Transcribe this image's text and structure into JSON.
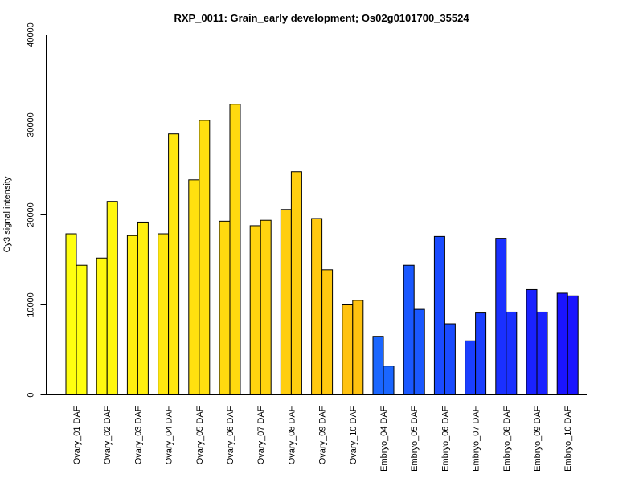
{
  "chart_data": {
    "type": "bar",
    "title": "RXP_0011: Grain_early development; Os02g0101700_35524",
    "xlabel": "",
    "ylabel": "Cy3 signal intensity",
    "ylim": [
      0,
      40000
    ],
    "yticks": [
      "0",
      "10000",
      "20000",
      "30000",
      "40000"
    ],
    "ytick_values": [
      0,
      10000,
      20000,
      30000,
      40000
    ],
    "grid": false,
    "legend": "none",
    "categories": [
      "Ovary_01 DAF",
      "Ovary_02 DAF",
      "Ovary_03 DAF",
      "Ovary_04 DAF",
      "Ovary_05 DAF",
      "Ovary_06 DAF",
      "Ovary_07 DAF",
      "Ovary_08 DAF",
      "Ovary_09 DAF",
      "Ovary_10 DAF",
      "Embryo_04 DAF",
      "Embryo_05 DAF",
      "Embryo_06 DAF",
      "Embryo_07 DAF",
      "Embryo_08 DAF",
      "Embryo_09 DAF",
      "Embryo_10 DAF"
    ],
    "series": [
      {
        "values": [
          17900,
          15200,
          17700,
          17900,
          23900,
          19300,
          18800,
          20600,
          19600,
          10000,
          6500,
          14400,
          17600,
          6000,
          17400,
          11700,
          11300
        ]
      },
      {
        "values": [
          14400,
          21500,
          19200,
          29000,
          30500,
          32300,
          19400,
          24800,
          13900,
          10500,
          3200,
          9500,
          7900,
          9100,
          9200,
          9200,
          11000
        ]
      }
    ],
    "bar_colors": [
      "#FFFF0F",
      "#FFF70F",
      "#FFEF0F",
      "#FFE70F",
      "#FFE00F",
      "#FFDA0F",
      "#FFD40F",
      "#FFCE0F",
      "#FFC80F",
      "#FFC20F",
      "#1A66FF",
      "#1A58FF",
      "#1A4BFF",
      "#1A3EFF",
      "#1A30FF",
      "#1A22FF",
      "#1A14FF"
    ]
  }
}
